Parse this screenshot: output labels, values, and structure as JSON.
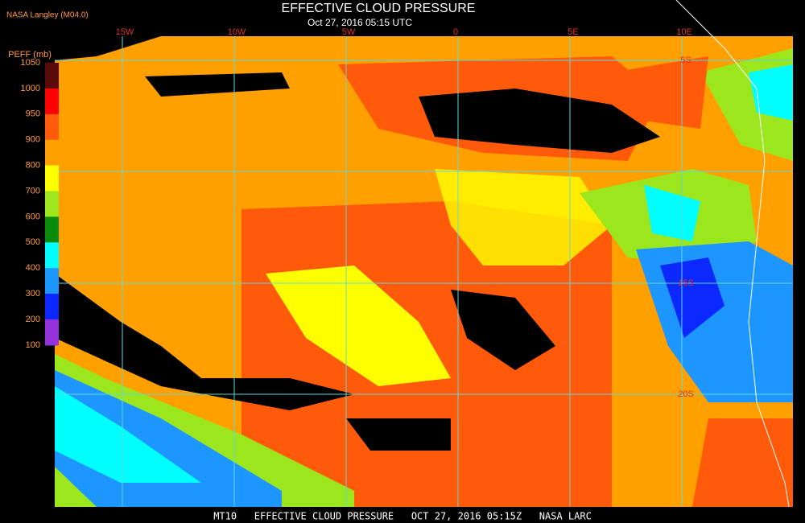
{
  "header": {
    "source": "NASA Langley (M04.0)",
    "title": "EFFECTIVE CLOUD PRESSURE",
    "subtitle": "Oct 27, 2016 05:15 UTC"
  },
  "colorbar": {
    "label": "PEFF (mb)",
    "ticks": [
      "1050",
      "1000",
      "950",
      "900",
      "800",
      "700",
      "600",
      "500",
      "400",
      "300",
      "200",
      "100"
    ],
    "colors": [
      "#5a0a0a",
      "#ff0000",
      "#ff5a0a",
      "#ffa000",
      "#ffff00",
      "#9ce61e",
      "#0a8c0a",
      "#00ffff",
      "#1e96ff",
      "#0a28ff",
      "#9632dc"
    ]
  },
  "map": {
    "lon_labels": [
      "15W",
      "10W",
      "5W",
      "0",
      "5E",
      "10E"
    ],
    "lat_labels": [
      "5S",
      "15S",
      "20S"
    ]
  },
  "footer": {
    "text": "MT10   EFFECTIVE CLOUD PRESSURE   OCT 27, 2016 05:15Z   NASA LARC"
  }
}
